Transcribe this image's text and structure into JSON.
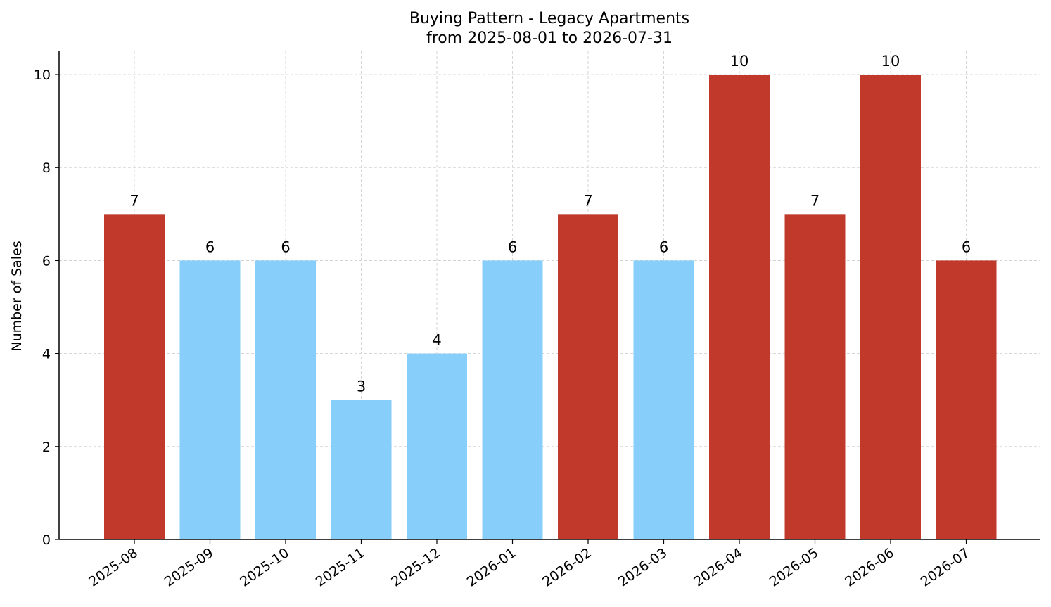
{
  "chart_data": {
    "type": "bar",
    "title": "Buying Pattern - Legacy Apartments",
    "subtitle": "from 2025-08-01 to 2026-07-31",
    "xlabel": "",
    "ylabel": "Number of Sales",
    "ylim": [
      0,
      10.5
    ],
    "yticks": [
      0,
      2,
      4,
      6,
      8,
      10
    ],
    "grid": true,
    "legend": "none",
    "categories": [
      "2025-08",
      "2025-09",
      "2025-10",
      "2025-11",
      "2025-12",
      "2026-01",
      "2026-02",
      "2026-03",
      "2026-04",
      "2026-05",
      "2026-06",
      "2026-07"
    ],
    "values": [
      7,
      6,
      6,
      3,
      4,
      6,
      7,
      6,
      10,
      7,
      10,
      6
    ],
    "highlight": [
      true,
      false,
      false,
      false,
      false,
      false,
      true,
      false,
      true,
      true,
      true,
      true
    ],
    "colors": {
      "highlight": "#c0392b",
      "normal": "#87cefa"
    }
  }
}
